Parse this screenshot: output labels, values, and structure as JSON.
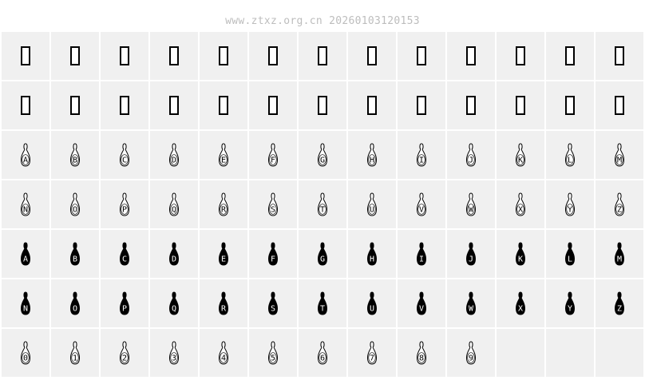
{
  "watermark": "www.ztxz.org.cn 20260103120153",
  "rows": [
    {
      "style": "missing",
      "chars": [
        "",
        "",
        "",
        "",
        "",
        "",
        "",
        "",
        "",
        "",
        "",
        "",
        ""
      ]
    },
    {
      "style": "missing",
      "chars": [
        "",
        "",
        "",
        "",
        "",
        "",
        "",
        "",
        "",
        "",
        "",
        "",
        ""
      ]
    },
    {
      "style": "outline",
      "chars": [
        "A",
        "B",
        "C",
        "D",
        "E",
        "F",
        "G",
        "H",
        "I",
        "J",
        "K",
        "L",
        "M"
      ]
    },
    {
      "style": "outline",
      "chars": [
        "N",
        "O",
        "P",
        "Q",
        "R",
        "S",
        "T",
        "U",
        "V",
        "W",
        "X",
        "Y",
        "Z"
      ]
    },
    {
      "style": "filled",
      "chars": [
        "A",
        "B",
        "C",
        "D",
        "E",
        "F",
        "G",
        "H",
        "I",
        "J",
        "K",
        "L",
        "M"
      ]
    },
    {
      "style": "filled",
      "chars": [
        "N",
        "O",
        "P",
        "Q",
        "R",
        "S",
        "T",
        "U",
        "V",
        "W",
        "X",
        "Y",
        "Z"
      ]
    },
    {
      "style": "outline",
      "chars": [
        "0",
        "1",
        "2",
        "3",
        "4",
        "5",
        "6",
        "7",
        "8",
        "9",
        "",
        "",
        ""
      ]
    }
  ],
  "colors": {
    "cell_bg": "#f0f0f0",
    "glyph": "#000000",
    "watermark": "#bdbdbd"
  }
}
